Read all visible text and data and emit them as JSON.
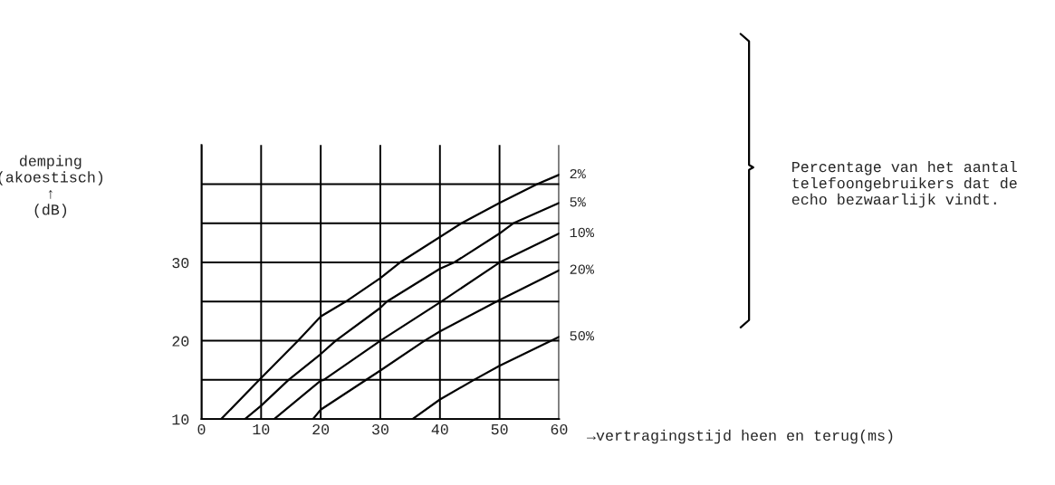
{
  "chart_data": {
    "type": "line",
    "ylabel": "demping\n(akoestisch)\n↑\n(dB)",
    "xlabel": "→vertragingstijd heen en terug(ms)",
    "series": [
      {
        "name": "2%",
        "color": "#000000",
        "x": [
          3.3,
          9.7,
          16.2,
          20,
          24.2,
          30,
          33.3,
          43.6,
          50,
          56.3,
          60
        ],
        "values": [
          10,
          15,
          20,
          23.1,
          25,
          28,
          30,
          35,
          37.6,
          40,
          41.2
        ]
      },
      {
        "name": "5%",
        "color": "#000000",
        "x": [
          7.3,
          10,
          14.6,
          20,
          22.5,
          30,
          31.1,
          40,
          42.4,
          50,
          52.3,
          60
        ],
        "values": [
          10,
          11.7,
          15,
          18.3,
          20,
          24.2,
          25,
          29.2,
          30,
          33.7,
          35,
          37.6
        ]
      },
      {
        "name": "10%",
        "color": "#000000",
        "x": [
          12.2,
          20,
          20.5,
          30,
          40.2,
          50,
          60
        ],
        "values": [
          10,
          14.9,
          15,
          20,
          25,
          30,
          33.7
        ]
      },
      {
        "name": "20%",
        "color": "#000000",
        "x": [
          18.7,
          20,
          30,
          37.4,
          40,
          49.5,
          60
        ],
        "values": [
          10,
          11.2,
          16.2,
          20,
          21.2,
          25,
          29.0
        ]
      },
      {
        "name": "50%",
        "color": "#000000",
        "x": [
          35.4,
          40,
          45.7,
          50,
          60
        ],
        "values": [
          10,
          12.5,
          15,
          16.8,
          20.5
        ]
      }
    ],
    "annotations": [
      "Percentage van het aantal\ntelefoongebruikers dat de\necho bezwaarlijk vindt."
    ],
    "xlim": [
      0,
      60
    ],
    "ylim": [
      10,
      45
    ],
    "xticks": [
      0,
      10,
      20,
      30,
      40,
      50,
      60
    ],
    "yticks": [
      10,
      {
        "value": 15,
        "label": null
      },
      20,
      {
        "value": 25,
        "label": null
      },
      30,
      {
        "value": 35,
        "label": null
      },
      {
        "value": 40,
        "label": null
      }
    ],
    "grid": true,
    "legend": false,
    "marker": "none",
    "line_style": "solid"
  }
}
